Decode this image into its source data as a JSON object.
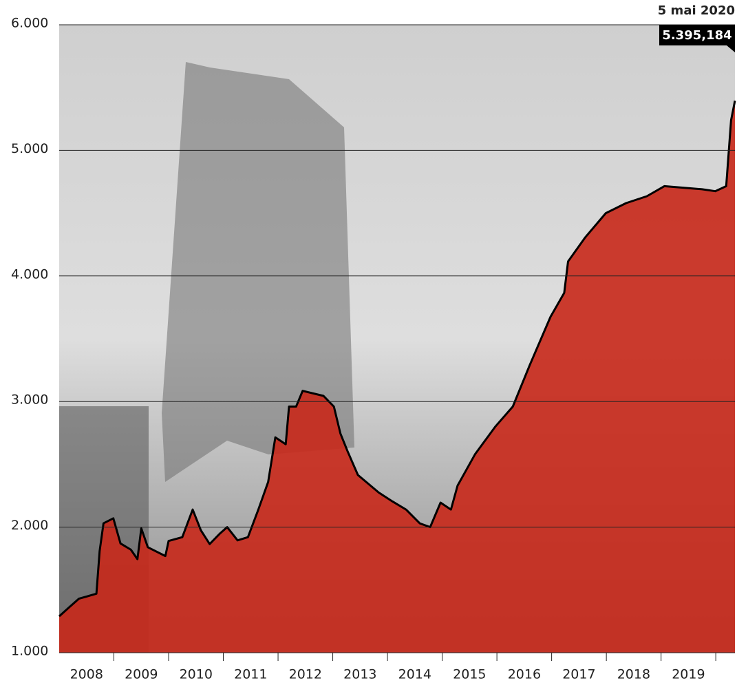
{
  "chart_data": {
    "type": "area",
    "annotation": "5 mai 2020",
    "x": [
      2008.0,
      2008.18,
      2008.36,
      2008.68,
      2008.74,
      2008.81,
      2008.99,
      2009.12,
      2009.31,
      2009.43,
      2009.5,
      2009.62,
      2009.94,
      2010.0,
      2010.25,
      2010.44,
      2010.59,
      2010.75,
      2010.94,
      2011.07,
      2011.26,
      2011.45,
      2011.64,
      2011.82,
      2011.95,
      2012.14,
      2012.2,
      2012.33,
      2012.45,
      2012.83,
      2013.02,
      2013.14,
      2013.27,
      2013.46,
      2013.84,
      2014.09,
      2014.34,
      2014.59,
      2014.78,
      2014.97,
      2015.16,
      2015.28,
      2015.6,
      2015.97,
      2016.29,
      2016.6,
      2016.98,
      2017.23,
      2017.3,
      2017.61,
      2017.99,
      2018.36,
      2018.74,
      2019.06,
      2019.75,
      2019.99,
      2020.19,
      2020.28,
      2020.35
    ],
    "series": [
      {
        "color": "#c8281a",
        "values": [
          1290,
          1360,
          1430,
          1470,
          1810,
          2030,
          2070,
          1870,
          1820,
          1745,
          1990,
          1840,
          1770,
          1890,
          1920,
          2140,
          1975,
          1865,
          1950,
          2000,
          1895,
          1920,
          2140,
          2360,
          2715,
          2660,
          2960,
          2960,
          3085,
          3045,
          2960,
          2745,
          2605,
          2415,
          2275,
          2205,
          2140,
          2030,
          2000,
          2195,
          2140,
          2330,
          2580,
          2800,
          2960,
          3290,
          3675,
          3865,
          4115,
          4305,
          4500,
          4580,
          4635,
          4715,
          4690,
          4675,
          4715,
          5240,
          5395.184
        ],
        "value_labels": [
          null,
          null,
          null,
          null,
          null,
          null,
          null,
          null,
          null,
          null,
          null,
          null,
          null,
          null,
          null,
          null,
          null,
          null,
          null,
          null,
          null,
          null,
          null,
          null,
          null,
          null,
          null,
          null,
          null,
          null,
          null,
          null,
          null,
          null,
          null,
          null,
          null,
          null,
          null,
          null,
          null,
          null,
          null,
          null,
          null,
          null,
          null,
          null,
          null,
          null,
          null,
          null,
          null,
          null,
          null,
          null,
          null,
          null,
          "5.395,184"
        ]
      }
    ],
    "xlim": [
      2008,
      2020.35
    ],
    "xticks": [
      {
        "value": 2008.5,
        "label": "2008"
      },
      {
        "value": 2009.5,
        "label": "2009"
      },
      {
        "value": 2010.5,
        "label": "2010"
      },
      {
        "value": 2011.5,
        "label": "2011"
      },
      {
        "value": 2012.5,
        "label": "2012"
      },
      {
        "value": 2013.5,
        "label": "2013"
      },
      {
        "value": 2014.5,
        "label": "2014"
      },
      {
        "value": 2015.5,
        "label": "2015"
      },
      {
        "value": 2016.5,
        "label": "2016"
      },
      {
        "value": 2017.5,
        "label": "2017"
      },
      {
        "value": 2018.5,
        "label": "2018"
      },
      {
        "value": 2019.5,
        "label": "2019"
      }
    ],
    "minor_xticks": [
      2009,
      2010,
      2011,
      2012,
      2013,
      2014,
      2015,
      2016,
      2017,
      2018,
      2019,
      2020
    ],
    "ylim": [
      1000,
      6000
    ],
    "yticks": [
      {
        "value": 1000,
        "label": "1.000"
      },
      {
        "value": 2000,
        "label": "2.000"
      },
      {
        "value": 3000,
        "label": "3.000"
      },
      {
        "value": 4000,
        "label": "4.000"
      },
      {
        "value": 5000,
        "label": "5.000"
      },
      {
        "value": 6000,
        "label": "6.000"
      }
    ],
    "grid": true
  }
}
